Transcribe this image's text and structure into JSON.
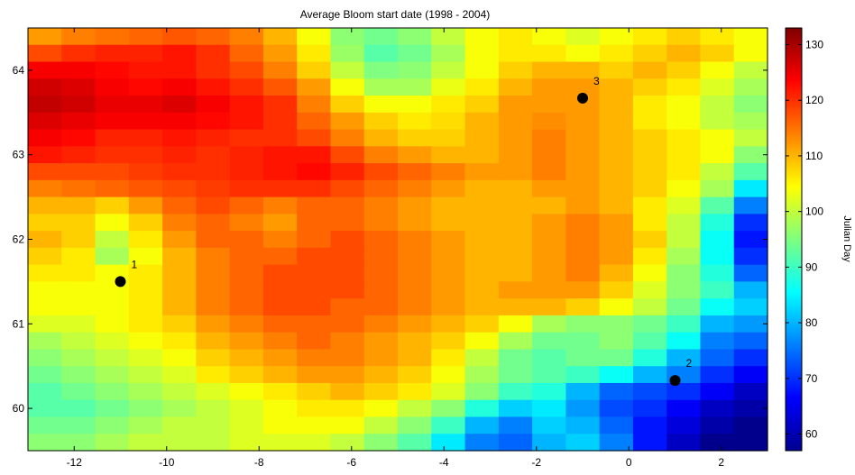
{
  "chart_data": {
    "type": "heatmap",
    "title": "Average Bloom start date (1998 - 2004)",
    "xlim": [
      -13,
      3
    ],
    "ylim": [
      59.5,
      64.5
    ],
    "x_ticks": [
      "-12",
      "-10",
      "-8",
      "-6",
      "-4",
      "-2",
      "0",
      "2"
    ],
    "x_tick_values": [
      -12,
      -10,
      -8,
      -6,
      -4,
      -2,
      0,
      2
    ],
    "y_ticks": [
      "60",
      "61",
      "62",
      "63",
      "64"
    ],
    "y_tick_values": [
      60,
      61,
      62,
      63,
      64
    ],
    "colorbar": {
      "label": "Julian Day",
      "range": [
        57,
        133
      ],
      "ticks": [
        "60",
        "70",
        "80",
        "90",
        "100",
        "110",
        "120",
        "130"
      ],
      "tick_values": [
        60,
        70,
        80,
        90,
        100,
        110,
        120,
        130
      ],
      "colormap": "jet"
    },
    "grid_rows": [
      {
        "lat": 64.4,
        "values": [
          112,
          114,
          115,
          116,
          117,
          116,
          114,
          110,
          104,
          96,
          94,
          96,
          100,
          104,
          106,
          104,
          102,
          104,
          106,
          108,
          106,
          104,
          104
        ]
      },
      {
        "lat": 64.2,
        "values": [
          118,
          120,
          121,
          121,
          122,
          120,
          116,
          112,
          106,
          97,
          92,
          94,
          98,
          104,
          106,
          106,
          104,
          106,
          108,
          110,
          108,
          104,
          102
        ]
      },
      {
        "lat": 64.0,
        "values": [
          124,
          124,
          123,
          122,
          122,
          120,
          118,
          114,
          108,
          100,
          95,
          96,
          100,
          104,
          108,
          110,
          110,
          108,
          110,
          108,
          104,
          100,
          98
        ]
      },
      {
        "lat": 63.8,
        "values": [
          127,
          126,
          124,
          123,
          124,
          122,
          120,
          117,
          112,
          104,
          98,
          98,
          103,
          106,
          110,
          112,
          112,
          110,
          108,
          106,
          102,
          98,
          96
        ]
      },
      {
        "lat": 63.6,
        "values": [
          128,
          127,
          125,
          125,
          126,
          124,
          122,
          120,
          114,
          108,
          104,
          104,
          106,
          108,
          112,
          112,
          112,
          110,
          106,
          104,
          100,
          96,
          94
        ]
      },
      {
        "lat": 63.4,
        "values": [
          126,
          125,
          124,
          124,
          124,
          123,
          122,
          120,
          116,
          112,
          108,
          106,
          107,
          110,
          112,
          113,
          112,
          110,
          106,
          104,
          100,
          98,
          96
        ]
      },
      {
        "lat": 63.2,
        "values": [
          124,
          123,
          121,
          121,
          122,
          121,
          120,
          120,
          118,
          114,
          110,
          108,
          108,
          110,
          112,
          114,
          112,
          110,
          108,
          106,
          104,
          100,
          98
        ]
      },
      {
        "lat": 63.0,
        "values": [
          122,
          121,
          120,
          120,
          121,
          120,
          121,
          122,
          122,
          118,
          114,
          112,
          110,
          110,
          112,
          114,
          112,
          110,
          108,
          106,
          104,
          96,
          92
        ]
      },
      {
        "lat": 62.8,
        "values": [
          118,
          118,
          118,
          119,
          120,
          120,
          121,
          122,
          123,
          121,
          118,
          116,
          114,
          112,
          112,
          114,
          112,
          110,
          108,
          106,
          100,
          92,
          88
        ]
      },
      {
        "lat": 62.6,
        "values": [
          114,
          115,
          116,
          117,
          118,
          119,
          120,
          120,
          120,
          118,
          116,
          114,
          112,
          110,
          110,
          112,
          112,
          110,
          108,
          104,
          98,
          84,
          80
        ]
      },
      {
        "lat": 62.4,
        "values": [
          110,
          110,
          108,
          112,
          116,
          118,
          116,
          114,
          116,
          116,
          114,
          112,
          110,
          110,
          110,
          110,
          112,
          110,
          106,
          102,
          92,
          76,
          72
        ]
      },
      {
        "lat": 62.2,
        "values": [
          108,
          108,
          104,
          108,
          114,
          116,
          114,
          112,
          116,
          116,
          114,
          112,
          110,
          110,
          110,
          112,
          114,
          112,
          106,
          100,
          88,
          70,
          66
        ]
      },
      {
        "lat": 62.0,
        "values": [
          110,
          108,
          100,
          106,
          112,
          116,
          116,
          114,
          116,
          118,
          116,
          114,
          112,
          110,
          110,
          112,
          114,
          112,
          108,
          100,
          86,
          68,
          64
        ]
      },
      {
        "lat": 61.8,
        "values": [
          108,
          106,
          98,
          104,
          110,
          114,
          116,
          116,
          118,
          118,
          116,
          114,
          112,
          110,
          110,
          112,
          114,
          112,
          106,
          98,
          86,
          70,
          64
        ]
      },
      {
        "lat": 61.6,
        "values": [
          106,
          106,
          104,
          106,
          110,
          114,
          116,
          118,
          118,
          118,
          116,
          114,
          112,
          110,
          110,
          112,
          114,
          110,
          104,
          96,
          88,
          74,
          66
        ]
      },
      {
        "lat": 61.4,
        "values": [
          104,
          104,
          104,
          106,
          110,
          114,
          116,
          118,
          118,
          118,
          116,
          114,
          112,
          110,
          112,
          112,
          112,
          108,
          102,
          96,
          90,
          80,
          70
        ]
      },
      {
        "lat": 61.2,
        "values": [
          104,
          104,
          104,
          106,
          110,
          114,
          116,
          118,
          118,
          116,
          116,
          114,
          112,
          110,
          110,
          110,
          108,
          104,
          100,
          94,
          86,
          82,
          74
        ]
      },
      {
        "lat": 61.0,
        "values": [
          102,
          102,
          104,
          106,
          108,
          112,
          114,
          116,
          116,
          116,
          114,
          112,
          110,
          108,
          104,
          98,
          96,
          96,
          94,
          90,
          80,
          78,
          72
        ]
      },
      {
        "lat": 60.8,
        "values": [
          98,
          100,
          102,
          104,
          106,
          110,
          112,
          114,
          116,
          114,
          112,
          110,
          108,
          104,
          98,
          94,
          94,
          96,
          92,
          86,
          76,
          74,
          68
        ]
      },
      {
        "lat": 60.6,
        "values": [
          96,
          98,
          100,
          102,
          104,
          108,
          110,
          112,
          114,
          114,
          112,
          110,
          106,
          100,
          94,
          92,
          94,
          94,
          88,
          80,
          74,
          70,
          66
        ]
      },
      {
        "lat": 60.4,
        "values": [
          94,
          96,
          98,
          100,
          102,
          106,
          108,
          110,
          112,
          112,
          110,
          108,
          104,
          98,
          94,
          92,
          90,
          86,
          80,
          76,
          70,
          66,
          64
        ]
      },
      {
        "lat": 60.2,
        "values": [
          92,
          94,
          96,
          98,
          100,
          102,
          104,
          106,
          108,
          110,
          108,
          106,
          102,
          96,
          90,
          88,
          80,
          74,
          72,
          70,
          66,
          62,
          62
        ]
      },
      {
        "lat": 60.0,
        "values": [
          92,
          92,
          94,
          96,
          98,
          100,
          102,
          104,
          106,
          106,
          104,
          100,
          96,
          88,
          82,
          84,
          78,
          72,
          70,
          66,
          62,
          60,
          60
        ]
      },
      {
        "lat": 59.8,
        "values": [
          94,
          94,
          96,
          98,
          100,
          100,
          102,
          104,
          104,
          104,
          100,
          96,
          90,
          80,
          76,
          82,
          80,
          74,
          68,
          64,
          60,
          58,
          58
        ]
      },
      {
        "lat": 59.6,
        "values": [
          96,
          96,
          98,
          100,
          100,
          100,
          102,
          102,
          102,
          100,
          96,
          92,
          84,
          76,
          74,
          80,
          82,
          76,
          68,
          62,
          58,
          58,
          58
        ]
      }
    ],
    "grid_x_start": -13,
    "grid_x_step": 0.7273,
    "grid_y_step": 0.2,
    "points": [
      {
        "label": "1",
        "x": -11,
        "y": 61.5
      },
      {
        "label": "2",
        "x": 1,
        "y": 60.33
      },
      {
        "label": "3",
        "x": -1,
        "y": 63.67
      }
    ]
  }
}
